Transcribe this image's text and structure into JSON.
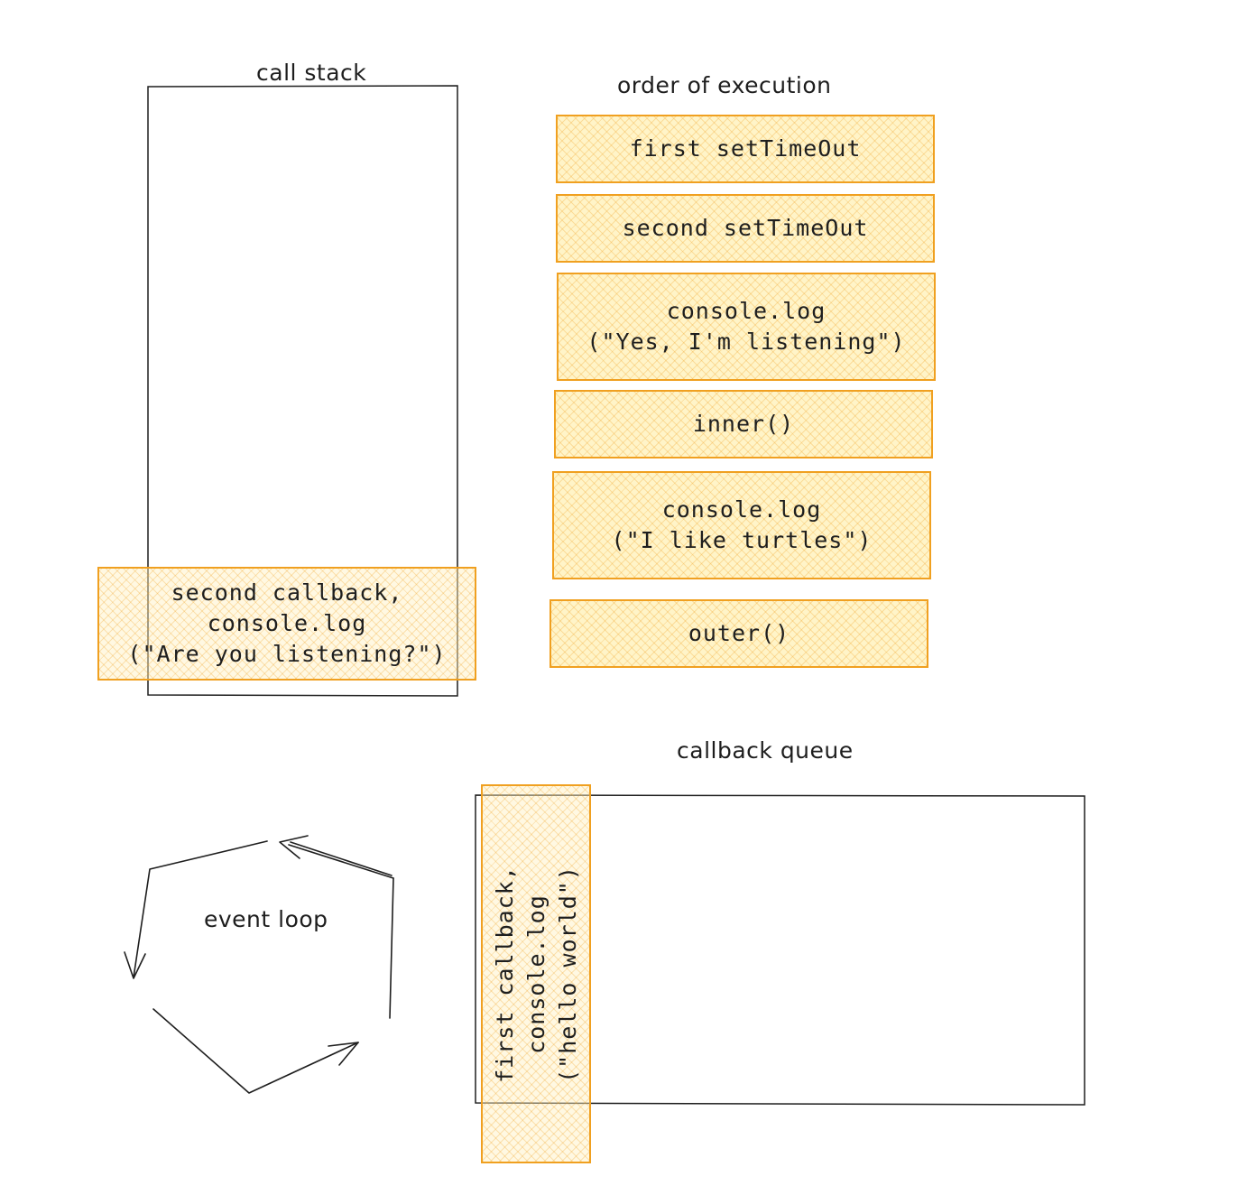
{
  "labels": {
    "call_stack": "call stack",
    "order_of_execution": "order of execution",
    "callback_queue": "callback queue",
    "event_loop": "event loop"
  },
  "execution_order": [
    {
      "lines": [
        "first setTimeOut"
      ]
    },
    {
      "lines": [
        "second setTimeOut"
      ]
    },
    {
      "lines": [
        "console.log",
        "(\"Yes, I'm listening\")"
      ]
    },
    {
      "lines": [
        "inner()"
      ]
    },
    {
      "lines": [
        "console.log",
        "(\"I like turtles\")"
      ]
    },
    {
      "lines": [
        "outer()"
      ]
    }
  ],
  "call_stack_card": {
    "lines": [
      "second callback,",
      "console.log",
      "(\"Are you listening?\")"
    ]
  },
  "callback_queue_card": {
    "lines": [
      "first callback,",
      "console.log",
      "(\"hello world\")"
    ]
  },
  "colors": {
    "card_border": "#f0a020",
    "card_fill": "#fff4c8",
    "stroke": "#1e1e1e"
  }
}
